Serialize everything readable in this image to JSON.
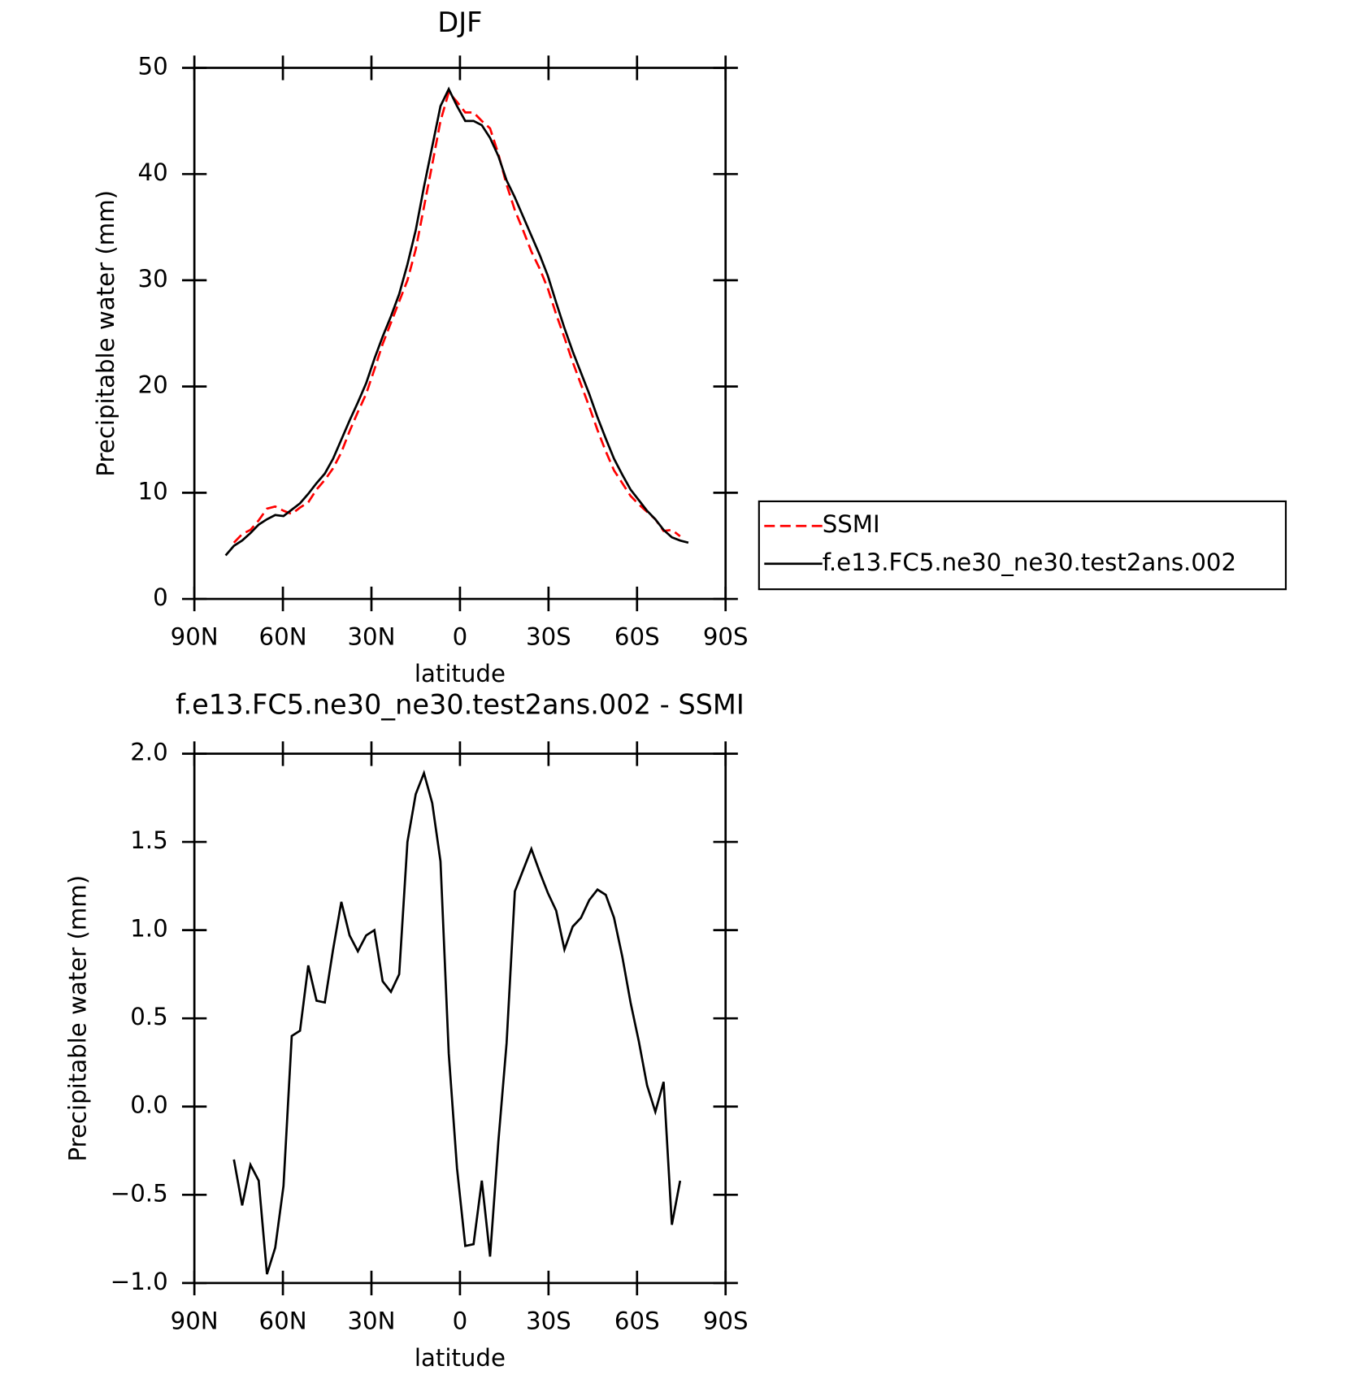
{
  "chart_data": [
    {
      "type": "line",
      "title": "DJF",
      "xlabel": "latitude",
      "ylabel": "Precipitable water (mm)",
      "x": [
        79.4,
        76.6,
        73.8,
        71.0,
        68.2,
        65.4,
        62.6,
        59.8,
        57.0,
        54.2,
        51.4,
        48.6,
        45.8,
        43.0,
        40.2,
        37.4,
        34.6,
        31.8,
        29.0,
        26.2,
        23.4,
        20.6,
        17.8,
        15.0,
        12.2,
        9.4,
        6.6,
        3.8,
        1.0,
        -1.8,
        -4.6,
        -7.4,
        -10.2,
        -13.0,
        -15.8,
        -18.6,
        -21.4,
        -24.2,
        -27.0,
        -29.8,
        -32.6,
        -35.4,
        -38.2,
        -41.0,
        -43.8,
        -46.6,
        -49.4,
        -52.2,
        -55.0,
        -57.8,
        -60.6,
        -63.4,
        -66.2,
        -69.0,
        -71.8,
        -74.6,
        -77.4
      ],
      "series": [
        {
          "name": "SSMI",
          "color": "#ff0000",
          "dashed": true,
          "values": [
            null,
            5.3,
            6.1,
            6.5,
            7.4,
            8.5,
            8.7,
            8.3,
            8.0,
            8.6,
            9.1,
            10.3,
            11.2,
            12.3,
            13.8,
            15.8,
            17.6,
            19.3,
            21.6,
            24.0,
            26.0,
            28.0,
            30.0,
            32.9,
            36.9,
            40.9,
            45.0,
            47.7,
            46.8,
            45.8,
            45.8,
            45.0,
            44.3,
            41.9,
            39.0,
            36.6,
            34.7,
            32.7,
            31.1,
            29.2,
            26.8,
            24.6,
            22.3,
            20.2,
            18.1,
            15.9,
            13.9,
            12.1,
            10.9,
            9.7,
            8.9,
            8.2,
            7.5,
            6.4,
            6.5,
            5.9,
            null
          ]
        },
        {
          "name": "f.e13.FC5.ne30_ne30.test2ans.002",
          "color": "#000000",
          "dashed": false,
          "values": [
            4.1,
            5.0,
            5.5,
            6.2,
            7.0,
            7.5,
            7.9,
            7.8,
            8.4,
            9.0,
            9.9,
            10.9,
            11.8,
            13.2,
            15.0,
            16.8,
            18.5,
            20.3,
            22.6,
            24.7,
            26.6,
            28.7,
            31.5,
            34.7,
            38.8,
            42.6,
            46.4,
            48.0,
            46.4,
            45.0,
            45.0,
            44.6,
            43.4,
            41.7,
            39.4,
            37.8,
            36.0,
            34.2,
            32.4,
            30.4,
            27.9,
            25.5,
            23.3,
            21.3,
            19.3,
            17.1,
            15.1,
            13.2,
            11.7,
            10.3,
            9.3,
            8.3,
            7.5,
            6.5,
            5.8,
            5.5,
            5.3
          ]
        }
      ],
      "xlim": [
        90,
        -90
      ],
      "xticks": [
        {
          "value": 90,
          "label": "90N"
        },
        {
          "value": 60,
          "label": "60N"
        },
        {
          "value": 30,
          "label": "30N"
        },
        0,
        {
          "value": -30,
          "label": "30S"
        },
        {
          "value": -60,
          "label": "60S"
        },
        {
          "value": -90,
          "label": "90S"
        }
      ],
      "ylim": [
        0,
        50
      ],
      "yticks": [
        0,
        10,
        20,
        30,
        40,
        50
      ],
      "legend": "right"
    },
    {
      "type": "line",
      "title": "f.e13.FC5.ne30_ne30.test2ans.002 - SSMI",
      "xlabel": "latitude",
      "ylabel": "Precipitable water (mm)",
      "x": [
        76.6,
        73.8,
        71.0,
        68.2,
        65.4,
        62.6,
        59.8,
        57.0,
        54.2,
        51.4,
        48.6,
        45.8,
        43.0,
        40.2,
        37.4,
        34.6,
        31.8,
        29.0,
        26.2,
        23.4,
        20.6,
        17.8,
        15.0,
        12.2,
        9.4,
        6.6,
        3.8,
        1.0,
        -1.8,
        -4.6,
        -7.4,
        -10.2,
        -13.0,
        -15.8,
        -18.6,
        -21.4,
        -24.2,
        -27.0,
        -29.8,
        -32.6,
        -35.4,
        -38.2,
        -41.0,
        -43.8,
        -46.6,
        -49.4,
        -52.2,
        -55.0,
        -57.8,
        -60.6,
        -63.4,
        -66.2,
        -69.0,
        -71.8,
        -74.6
      ],
      "series": [
        {
          "name": "f.e13.FC5.ne30_ne30.test2ans.002 - SSMI",
          "color": "#000000",
          "dashed": false,
          "values": [
            -0.3,
            -0.56,
            -0.33,
            -0.42,
            -0.95,
            -0.8,
            -0.45,
            0.4,
            0.43,
            0.8,
            0.6,
            0.59,
            0.89,
            1.16,
            0.97,
            0.88,
            0.97,
            1.0,
            0.71,
            0.65,
            0.75,
            1.5,
            1.77,
            1.89,
            1.72,
            1.39,
            0.3,
            -0.35,
            -0.79,
            -0.78,
            -0.42,
            -0.85,
            -0.2,
            0.36,
            1.22,
            1.34,
            1.46,
            1.33,
            1.21,
            1.11,
            0.89,
            1.02,
            1.07,
            1.17,
            1.23,
            1.2,
            1.07,
            0.85,
            0.59,
            0.37,
            0.12,
            -0.03,
            0.14,
            -0.67,
            -0.42
          ]
        }
      ],
      "xlim": [
        90,
        -90
      ],
      "xticks": [
        {
          "value": 90,
          "label": "90N"
        },
        {
          "value": 60,
          "label": "60N"
        },
        {
          "value": 30,
          "label": "30N"
        },
        0,
        {
          "value": -30,
          "label": "30S"
        },
        {
          "value": -60,
          "label": "60S"
        },
        {
          "value": -90,
          "label": "90S"
        }
      ],
      "ylim": [
        -1,
        2
      ],
      "yticks": [
        {
          "value": -1,
          "label": "−1.0"
        },
        {
          "value": -0.5,
          "label": "−0.5"
        },
        {
          "value": 0,
          "label": "0.0"
        },
        {
          "value": 0.5,
          "label": "0.5"
        },
        {
          "value": 1,
          "label": "1.0"
        },
        {
          "value": 1.5,
          "label": "1.5"
        },
        {
          "value": 2,
          "label": "2.0"
        }
      ]
    }
  ]
}
